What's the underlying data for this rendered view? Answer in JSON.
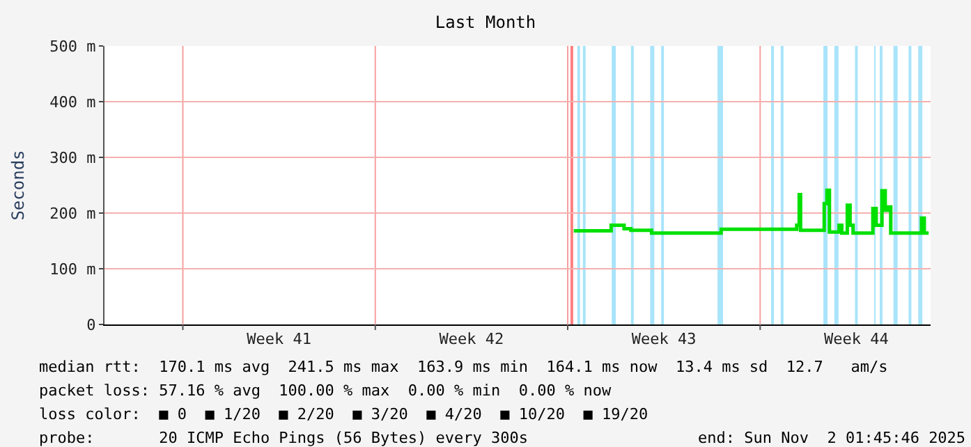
{
  "chart_data": {
    "type": "step",
    "title": "Last Month",
    "ylabel": "Seconds",
    "x": [
      "2025-10-20T05:17",
      "2025-10-21T13:12",
      "2025-10-21T13:55",
      "2025-10-21T22:19",
      "2025-10-22T01:12",
      "2025-10-22T07:12",
      "2025-10-22T23:17",
      "2025-10-23T01:12",
      "2025-10-25T13:12",
      "2025-10-25T13:55",
      "2025-10-28T07:12",
      "2025-10-28T07:55",
      "2025-10-28T10:05",
      "2025-10-28T11:17",
      "2025-10-29T07:12",
      "2025-10-29T07:55",
      "2025-10-29T10:19",
      "2025-10-29T12:29",
      "2025-10-29T19:12",
      "2025-10-29T20:53",
      "2025-10-29T23:17",
      "2025-10-30T01:41",
      "2025-10-30T04:05",
      "2025-10-30T06:29",
      "2025-10-30T09:07",
      "2025-10-31T01:12",
      "2025-10-31T02:24",
      "2025-10-31T05:17",
      "2025-10-31T07:55",
      "2025-10-31T10:19",
      "2025-10-31T13:12",
      "2025-10-31T15:07",
      "2025-10-31T18:00",
      "2025-11-01T19:12",
      "2025-11-01T20:53",
      "2025-11-01T23:17",
      "2025-11-02T03:07"
    ],
    "series": [
      {
        "color": "#00e000",
        "values": [
          168,
          168,
          178,
          178,
          172,
          169,
          169,
          164,
          164,
          171,
          171,
          178,
          233,
          169,
          169,
          217,
          241,
          166,
          166,
          178,
          164,
          164,
          214,
          178,
          164,
          164,
          208,
          178,
          178,
          240,
          205,
          211,
          164,
          164,
          191,
          164,
          164
        ]
      }
    ],
    "xlim": [
      "2025-10-03T03:36",
      "2025-11-02T04:48"
    ],
    "xticks": [
      {
        "value": "2025-10-06",
        "label": null
      },
      {
        "value": "2025-10-13",
        "label": null
      },
      {
        "value": "2025-10-20",
        "label": null
      },
      {
        "value": "2025-10-27",
        "label": null
      },
      {
        "value": "2025-10-09T12:00",
        "label": "Week 41"
      },
      {
        "value": "2025-10-16T12:00",
        "label": "Week 42"
      },
      {
        "value": "2025-10-23T12:00",
        "label": "Week 43"
      },
      {
        "value": "2025-10-30T12:00",
        "label": "Week 44"
      }
    ],
    "ylim": [
      0,
      500
    ],
    "yticks": [
      0,
      {
        "value": 100,
        "label": "100 m"
      },
      {
        "value": 200,
        "label": "200 m"
      },
      {
        "value": 300,
        "label": "300 m"
      },
      {
        "value": 400,
        "label": "400 m"
      },
      {
        "value": 500,
        "label": "500 m"
      }
    ],
    "grid": true,
    "bands": [
      {
        "axis": "x",
        "from": "2025-10-20T02:24",
        "to": "2025-10-20T04:48",
        "color": "#ff8080"
      },
      {
        "axis": "x",
        "from": "2025-10-20T08:24",
        "to": "2025-10-20T10:48",
        "color": "#a8e4fa"
      },
      {
        "axis": "x",
        "from": "2025-10-20T13:12",
        "to": "2025-10-20T15:36",
        "color": "#a8e4fa"
      },
      {
        "axis": "x",
        "from": "2025-10-21T14:24",
        "to": "2025-10-21T18:00",
        "color": "#a8e4fa"
      },
      {
        "axis": "x",
        "from": "2025-10-22T07:12",
        "to": "2025-10-22T09:36",
        "color": "#a8e4fa"
      },
      {
        "axis": "x",
        "from": "2025-10-23T00:00",
        "to": "2025-10-23T03:36",
        "color": "#a8e4fa"
      },
      {
        "axis": "x",
        "from": "2025-10-23T09:36",
        "to": "2025-10-23T12:00",
        "color": "#a8e4fa"
      },
      {
        "axis": "x",
        "from": "2025-10-25T10:48",
        "to": "2025-10-25T15:36",
        "color": "#a8e4fa"
      },
      {
        "axis": "x",
        "from": "2025-10-27T09:36",
        "to": "2025-10-27T12:00",
        "color": "#a8e4fa"
      },
      {
        "axis": "x",
        "from": "2025-10-27T18:00",
        "to": "2025-10-27T20:24",
        "color": "#a8e4fa"
      },
      {
        "axis": "x",
        "from": "2025-10-29T07:12",
        "to": "2025-10-29T10:48",
        "color": "#a8e4fa"
      },
      {
        "axis": "x",
        "from": "2025-10-29T16:48",
        "to": "2025-10-29T20:24",
        "color": "#a8e4fa"
      },
      {
        "axis": "x",
        "from": "2025-10-30T10:48",
        "to": "2025-10-30T13:12",
        "color": "#a8e4fa"
      },
      {
        "axis": "x",
        "from": "2025-10-31T03:36",
        "to": "2025-10-31T04:48",
        "color": "#a8e4fa"
      },
      {
        "axis": "x",
        "from": "2025-10-31T08:24",
        "to": "2025-10-31T10:48",
        "color": "#a8e4fa"
      },
      {
        "axis": "x",
        "from": "2025-10-31T20:24",
        "to": "2025-11-01T00:00",
        "color": "#a8e4fa"
      },
      {
        "axis": "x",
        "from": "2025-11-01T09:36",
        "to": "2025-11-01T12:00",
        "color": "#a8e4fa"
      },
      {
        "axis": "x",
        "from": "2025-11-01T18:00",
        "to": "2025-11-01T21:36",
        "color": "#a8e4fa"
      }
    ],
    "annotations": [
      "median rtt:  170.1 ms avg  241.5 ms max  163.9 ms min  164.1 ms now  13.4 ms sd  12.7   am/s",
      "packet loss: 57.16 % avg  100.00 % max  0.00 % min  0.00 % now",
      "loss color:  ■ 0  ■ 1/20  ■ 2/20  ■ 3/20  ■ 4/20  ■ 10/20  ■ 19/20",
      "probe:       20 ICMP Echo Pings (56 Bytes) every 300s",
      "end: Sun Nov  2 01:45:46 2025"
    ]
  }
}
